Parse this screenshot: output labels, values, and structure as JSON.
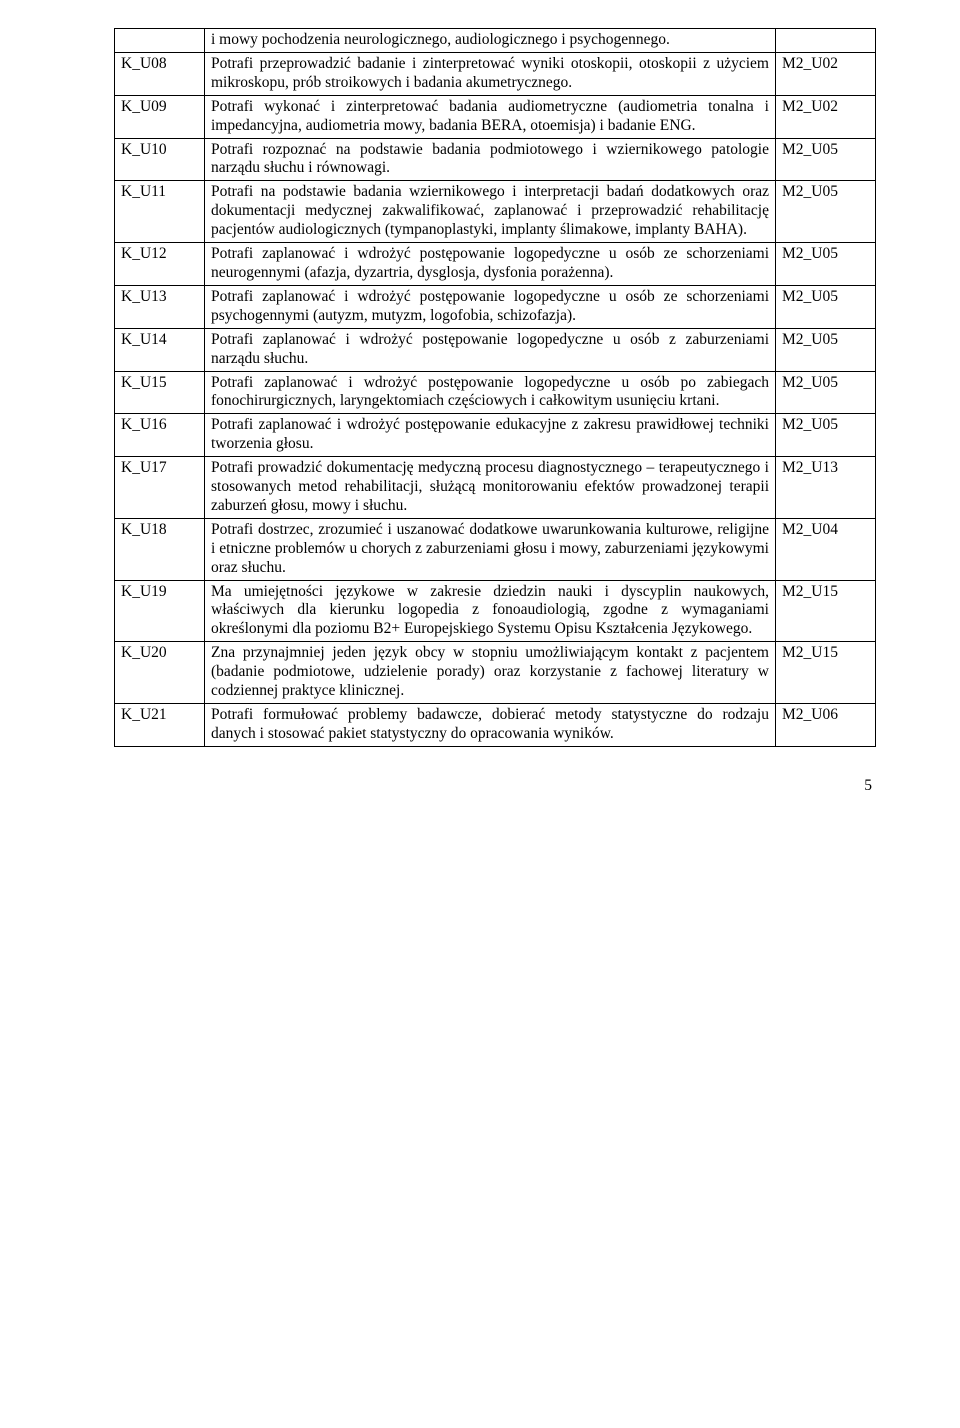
{
  "page_number": "5",
  "header_row": {
    "col1": "",
    "col2": "i mowy pochodzenia neurologicznego, audiologicznego i psychogennego.",
    "col3": ""
  },
  "rows": [
    {
      "code": "K_U08",
      "desc": "Potrafi przeprowadzić badanie i zinterpretować wyniki otoskopii, otoskopii z użyciem mikroskopu, prób stroikowych i badania akumetrycznego.",
      "ref": "M2_U02"
    },
    {
      "code": "K_U09",
      "desc": "Potrafi wykonać i zinterpretować badania audiometryczne (audiometria tonalna i impedancyjna, audiometria mowy, badania BERA, otoemisja) i badanie ENG.",
      "ref": "M2_U02"
    },
    {
      "code": "K_U10",
      "desc": "Potrafi rozpoznać na podstawie badania podmiotowego i wziernikowego patologie narządu słuchu i równowagi.",
      "ref": "M2_U05"
    },
    {
      "code": "K_U11",
      "desc": "Potrafi na podstawie badania wziernikowego i interpretacji badań dodatkowych oraz dokumentacji medycznej zakwalifikować, zaplanować i przeprowadzić rehabilitację pacjentów audiologicznych (tympanoplastyki, implanty ślimakowe, implanty BAHA).",
      "ref": "M2_U05"
    },
    {
      "code": "K_U12",
      "desc": "Potrafi zaplanować i wdrożyć postępowanie logopedyczne u osób ze schorzeniami neurogennymi (afazja, dyzartria, dysglosja, dysfonia porażenna).",
      "ref": "M2_U05"
    },
    {
      "code": "K_U13",
      "desc": "Potrafi zaplanować i wdrożyć postępowanie logopedyczne u osób ze schorzeniami psychogennymi (autyzm, mutyzm, logofobia, schizofazja).",
      "ref": "M2_U05"
    },
    {
      "code": "K_U14",
      "desc": "Potrafi zaplanować i wdrożyć postępowanie logopedyczne u osób z zaburzeniami narządu słuchu.",
      "ref": "M2_U05"
    },
    {
      "code": "K_U15",
      "desc": "Potrafi zaplanować i wdrożyć postępowanie logopedyczne u osób po zabiegach fonochirurgicznych, laryngektomiach częściowych i całkowitym usunięciu krtani.",
      "ref": "M2_U05"
    },
    {
      "code": "K_U16",
      "desc": "Potrafi zaplanować i wdrożyć postępowanie edukacyjne z zakresu prawidłowej techniki tworzenia głosu.",
      "ref": "M2_U05"
    },
    {
      "code": "K_U17",
      "desc": "Potrafi prowadzić dokumentację medyczną procesu diagnostycznego – terapeutycznego i stosowanych metod rehabilitacji, służącą monitorowaniu efektów prowadzonej terapii zaburzeń głosu, mowy i słuchu.",
      "ref": "M2_U13"
    },
    {
      "code": "K_U18",
      "desc": "Potrafi dostrzec, zrozumieć i uszanować dodatkowe uwarunkowania kulturowe, religijne i etniczne problemów u chorych z zaburzeniami głosu i mowy, zaburzeniami językowymi oraz słuchu.",
      "ref": "M2_U04"
    },
    {
      "code": "K_U19",
      "desc": "Ma umiejętności językowe w zakresie dziedzin nauki i dyscyplin naukowych, właściwych dla kierunku logopedia z fonoaudiologią, zgodne z wymaganiami określonymi dla poziomu B2+ Europejskiego Systemu Opisu Kształcenia Językowego.",
      "ref": "M2_U15"
    },
    {
      "code": "K_U20",
      "desc": "Zna przynajmniej jeden język obcy w stopniu umożliwiającym kontakt z pacjentem (badanie podmiotowe, udzielenie porady) oraz korzystanie z fachowej literatury w codziennej praktyce klinicznej.",
      "ref": "M2_U15"
    },
    {
      "code": "K_U21",
      "desc": "Potrafi formułować problemy badawcze, dobierać metody statystyczne do rodzaju danych i stosować pakiet statystyczny do opracowania wyników.",
      "ref": "M2_U06"
    }
  ]
}
